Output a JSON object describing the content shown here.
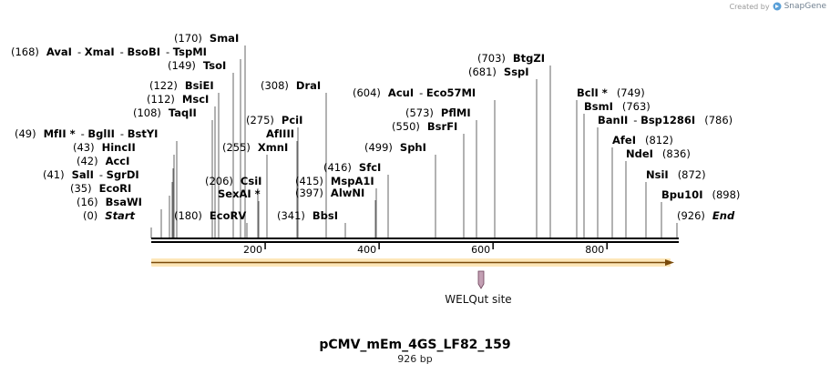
{
  "credit": {
    "prefix": "Created by",
    "brand": "SnapGene"
  },
  "plasmid": {
    "name": "pCMV_mEm_4GS_LF82_159",
    "length_label": "926 bp",
    "length": 926
  },
  "ruler": {
    "ticks": [
      200,
      400,
      600,
      800
    ]
  },
  "features": [
    {
      "name": "orf-arrow",
      "start": 0,
      "end": 926,
      "color": "#f5a623",
      "direction": "forward"
    },
    {
      "name": "WELQut site",
      "label": "WELQut site",
      "position": 581,
      "color": "#c97b9a"
    }
  ],
  "sites": [
    {
      "label": "(0)",
      "names": [
        "Start"
      ],
      "italic": true
    },
    {
      "label": "(16)",
      "names": [
        "BsaWI"
      ]
    },
    {
      "label": "(35)",
      "names": [
        "EcoRI"
      ]
    },
    {
      "label": "(41)",
      "names": [
        "SalI",
        "SgrDI"
      ]
    },
    {
      "label": "(42)",
      "names": [
        "AccI"
      ]
    },
    {
      "label": "(43)",
      "names": [
        "HincII"
      ]
    },
    {
      "label": "(49)",
      "names": [
        "MfII *",
        "BglII",
        "BstYI"
      ]
    },
    {
      "label": "(108)",
      "names": [
        "TaqII"
      ]
    },
    {
      "label": "(112)",
      "names": [
        "MscI"
      ]
    },
    {
      "label": "(122)",
      "names": [
        "BsiEI"
      ]
    },
    {
      "label": "(149)",
      "names": [
        "TsoI"
      ]
    },
    {
      "label": "(168)",
      "names": [
        "AvaI",
        "XmaI",
        "BsoBI",
        "TspMI"
      ]
    },
    {
      "label": "(170)",
      "names": [
        "SmaI"
      ]
    },
    {
      "label": "(180)",
      "names": [
        "EcoRV"
      ]
    },
    {
      "label": "(206)",
      "names": [
        "CsiI"
      ]
    },
    {
      "label": "SexAI *",
      "names": [
        "SexAI *"
      ]
    },
    {
      "label": "(255)",
      "names": [
        "XmnI"
      ]
    },
    {
      "label": "AfIIII",
      "names": [
        "AfIIII"
      ]
    },
    {
      "label": "(275)",
      "names": [
        "PciI"
      ]
    },
    {
      "label": "(308)",
      "names": [
        "DraI"
      ]
    },
    {
      "label": "(341)",
      "names": [
        "BbsI"
      ]
    },
    {
      "label": "(397)",
      "names": [
        "AlwNI"
      ]
    },
    {
      "label": "(415)",
      "names": [
        "MspA1I"
      ]
    },
    {
      "label": "(416)",
      "names": [
        "SfcI"
      ]
    },
    {
      "label": "(499)",
      "names": [
        "SphI"
      ]
    },
    {
      "label": "(550)",
      "names": [
        "BsrFI"
      ]
    },
    {
      "label": "(573)",
      "names": [
        "PflMI"
      ]
    },
    {
      "label": "(604)",
      "names": [
        "AcuI",
        "Eco57MI"
      ]
    },
    {
      "label": "(681)",
      "names": [
        "SspI"
      ]
    },
    {
      "label": "(703)",
      "names": [
        "BtgZI"
      ]
    },
    {
      "label": "(749)",
      "names": [
        "BclI *"
      ]
    },
    {
      "label": "(763)",
      "names": [
        "BsmI"
      ]
    },
    {
      "label": "(786)",
      "names": [
        "BanII",
        "Bsp1286I"
      ]
    },
    {
      "label": "(812)",
      "names": [
        "AfeI"
      ]
    },
    {
      "label": "(836)",
      "names": [
        "NdeI"
      ]
    },
    {
      "label": "(872)",
      "names": [
        "NsiI"
      ]
    },
    {
      "label": "(898)",
      "names": [
        "Bpu10I"
      ]
    },
    {
      "label": "(926)",
      "names": [
        "End"
      ],
      "italic": true
    }
  ]
}
